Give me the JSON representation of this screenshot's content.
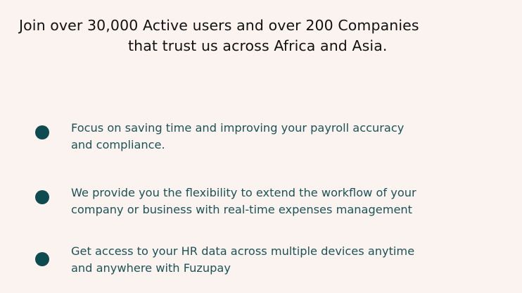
{
  "headline": {
    "line1": "Join over 30,000 Active users and over 200 Companies",
    "line2": "that trust us across Africa and Asia."
  },
  "features": [
    {
      "line1": "Focus on saving time and improving your payroll accuracy",
      "line2": "and compliance."
    },
    {
      "line1": "We provide you the flexibility to extend the workflow of your",
      "line2": "company or business with real-time expenses management"
    },
    {
      "line1": "Get access to your HR data across multiple devices anytime",
      "line2": "and anywhere with Fuzupay"
    }
  ],
  "colors": {
    "background": "#fbf3f0",
    "bullet": "#0d4b50",
    "feature_text": "#1c5356",
    "headline_text": "#111111"
  }
}
